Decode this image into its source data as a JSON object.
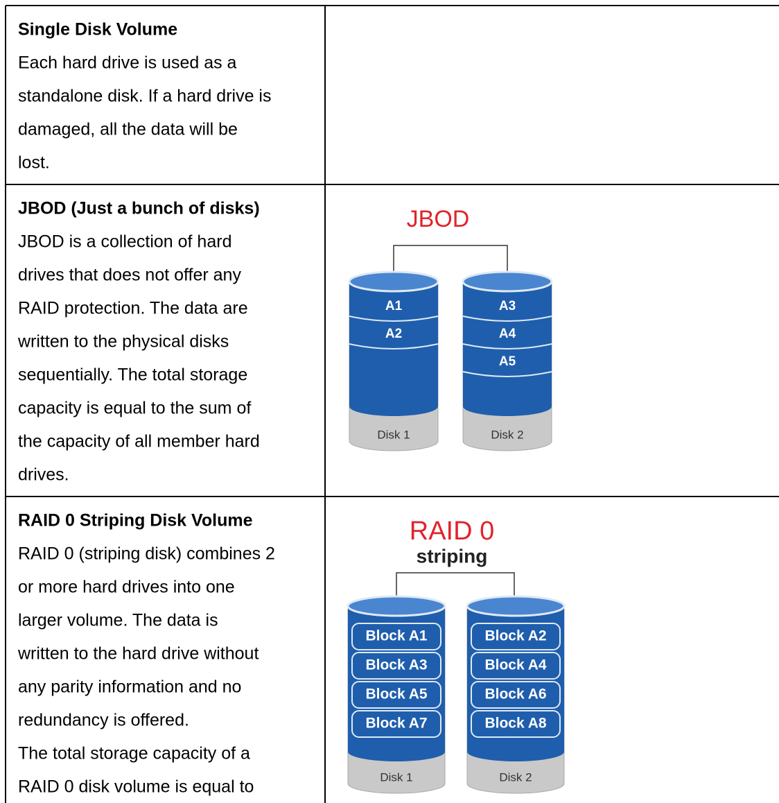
{
  "table": {
    "rows": [
      {
        "title": "Single Disk Volume",
        "lines": [
          "Each hard drive is used as a",
          "standalone disk. If a hard drive is",
          "damaged, all the data will be",
          "lost."
        ]
      },
      {
        "title": "JBOD (Just a bunch of disks)",
        "lines": [
          "JBOD is a collection of hard",
          "drives that does not offer any",
          "RAID protection. The data are",
          "written to the physical disks",
          "sequentially. The total storage",
          "capacity is equal to the sum of",
          "the capacity of all member hard",
          "drives."
        ],
        "diagram": {
          "title": "JBOD",
          "disks": [
            {
              "label": "Disk 1",
              "blocks": [
                "A1",
                "A2"
              ]
            },
            {
              "label": "Disk 2",
              "blocks": [
                "A3",
                "A4",
                "A5"
              ]
            }
          ]
        }
      },
      {
        "title": "RAID 0 Striping Disk Volume",
        "lines": [
          "RAID 0 (striping disk) combines 2",
          "or more hard drives into one",
          "larger volume. The data is",
          "written to the hard drive without",
          "any parity information and no",
          "redundancy is offered.",
          "The total storage capacity of a",
          "RAID 0 disk volume is equal to"
        ],
        "diagram": {
          "title": "RAID 0",
          "subtitle": "striping",
          "disks": [
            {
              "label": "Disk 1",
              "blocks": [
                "Block A1",
                "Block A3",
                "Block A5",
                "Block A7"
              ]
            },
            {
              "label": "Disk 2",
              "blocks": [
                "Block A2",
                "Block A4",
                "Block A6",
                "Block A8"
              ]
            }
          ]
        }
      }
    ]
  }
}
